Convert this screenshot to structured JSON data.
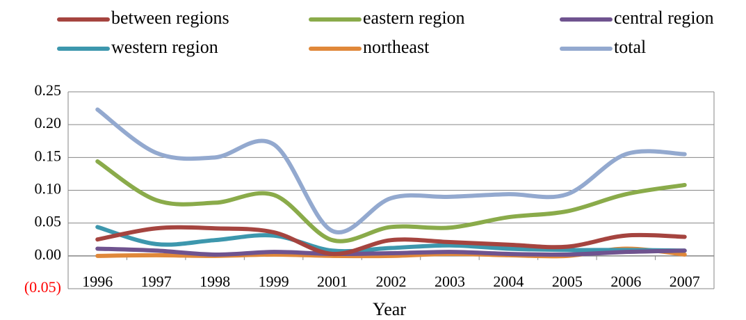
{
  "chart_data": {
    "type": "line",
    "x_label": "Year",
    "categories": [
      "1996",
      "1997",
      "1998",
      "1999",
      "2001",
      "2002",
      "2003",
      "2004",
      "2005",
      "2006",
      "2007"
    ],
    "series": [
      {
        "name": "between regions",
        "color": "#a5443f",
        "values": [
          0.025,
          0.042,
          0.042,
          0.036,
          0.003,
          0.024,
          0.021,
          0.017,
          0.014,
          0.031,
          0.029
        ]
      },
      {
        "name": "eastern region",
        "color": "#8aab4a",
        "values": [
          0.144,
          0.085,
          0.081,
          0.093,
          0.024,
          0.044,
          0.043,
          0.059,
          0.068,
          0.094,
          0.108
        ]
      },
      {
        "name": "central region",
        "color": "#6f538f",
        "values": [
          0.011,
          0.008,
          0.002,
          0.006,
          0.003,
          0.004,
          0.006,
          0.003,
          0.002,
          0.006,
          0.008
        ]
      },
      {
        "name": "western region",
        "color": "#3d97ad",
        "values": [
          0.044,
          0.018,
          0.024,
          0.031,
          0.008,
          0.012,
          0.016,
          0.011,
          0.009,
          0.009,
          0.008
        ]
      },
      {
        "name": "northeast",
        "color": "#e0883a",
        "values": [
          0.0,
          0.001,
          0.0,
          0.002,
          0.0,
          0.0,
          0.003,
          0.001,
          0.0,
          0.011,
          0.002
        ]
      },
      {
        "name": "total",
        "color": "#93a9cf",
        "values": [
          0.223,
          0.157,
          0.15,
          0.17,
          0.038,
          0.088,
          0.09,
          0.094,
          0.094,
          0.155,
          0.155
        ]
      }
    ],
    "ylim": [
      -0.05,
      0.25
    ],
    "yticks": [
      {
        "value": -0.05,
        "label": "(0.05)"
      },
      {
        "value": 0,
        "label": "0.00"
      },
      {
        "value": 0.05,
        "label": "0.05"
      },
      {
        "value": 0.1,
        "label": "0.10"
      },
      {
        "value": 0.15,
        "label": "0.15"
      },
      {
        "value": 0.2,
        "label": "0.20"
      },
      0.25
    ],
    "negative_tick_color": "#ff0000",
    "grid": true,
    "smooth": true,
    "legend_position": "top"
  }
}
